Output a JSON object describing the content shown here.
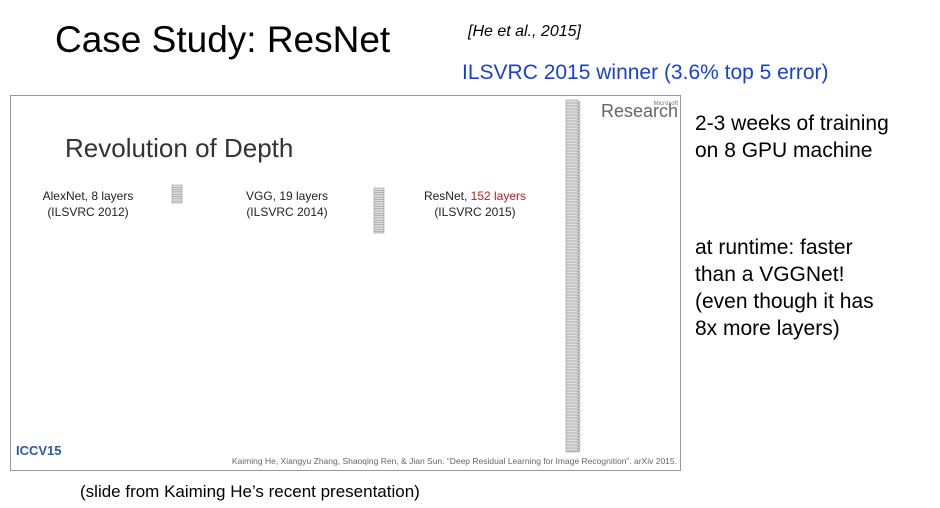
{
  "header": {
    "title": "Case Study: ResNet",
    "citation": "[He et al., 2015]",
    "subtitle": "ILSVRC 2015 winner (3.6% top 5 error)"
  },
  "slide": {
    "title": "Revolution of Depth",
    "brand": {
      "small": "Microsoft",
      "large": "Research"
    },
    "networks": [
      {
        "name": "AlexNet, 8 layers",
        "year": "(ILSVRC 2012)"
      },
      {
        "name": "VGG, 19 layers",
        "year": "(ILSVRC 2014)"
      },
      {
        "name": "ResNet, ",
        "highlight": "152 layers",
        "year": "(ILSVRC 2015)"
      }
    ],
    "logo": "ICCV15",
    "reference": "Kaiming He, Xiangyu Zhang, Shaoqing Ren, & Jian Sun. “Deep Residual Learning for Image Recognition”. arXiv 2015."
  },
  "notes": [
    [
      "2-3 weeks of training",
      "on 8 GPU machine"
    ],
    [
      "at runtime: faster",
      "than a VGGNet!",
      "(even though it has",
      "8x more layers)"
    ]
  ],
  "caption": "(slide from Kaiming He’s recent presentation)"
}
